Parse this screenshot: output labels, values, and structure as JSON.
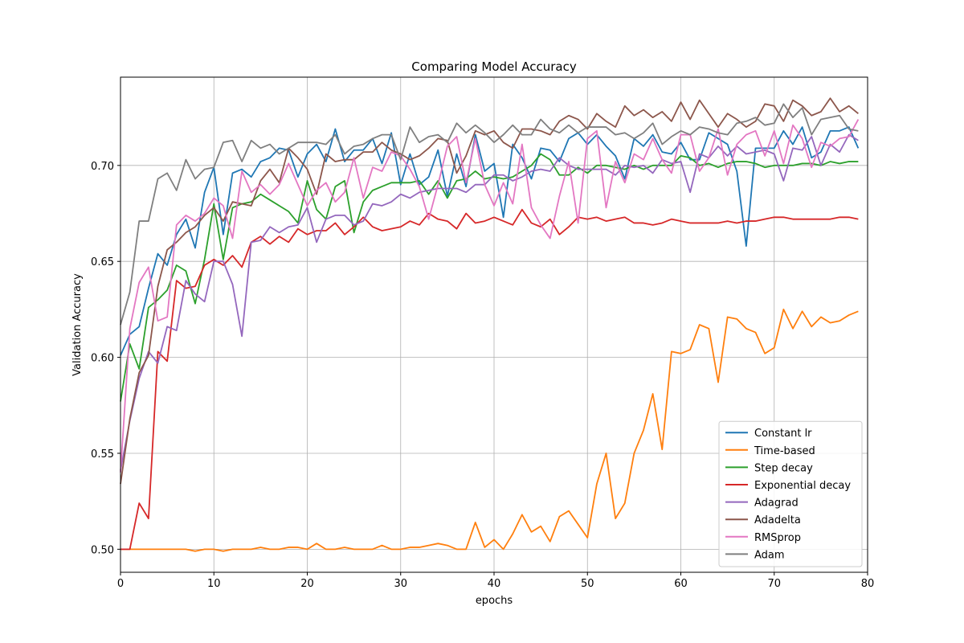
{
  "chart_data": {
    "type": "line",
    "title": "Comparing Model Accuracy",
    "xlabel": "epochs",
    "ylabel": "Validation Accuracy",
    "xlim": [
      0,
      80
    ],
    "ylim": [
      0.488,
      0.746
    ],
    "xticks": [
      0,
      10,
      20,
      30,
      40,
      50,
      60,
      70,
      80
    ],
    "yticks": [
      0.5,
      0.55,
      0.6,
      0.65,
      0.7
    ],
    "ytick_labels": [
      "0.50",
      "0.55",
      "0.60",
      "0.65",
      "0.70"
    ],
    "grid": true,
    "legend_position": "lower-right",
    "x": [
      0,
      1,
      2,
      3,
      4,
      5,
      6,
      7,
      8,
      9,
      10,
      11,
      12,
      13,
      14,
      15,
      16,
      17,
      18,
      19,
      20,
      21,
      22,
      23,
      24,
      25,
      26,
      27,
      28,
      29,
      30,
      31,
      32,
      33,
      34,
      35,
      36,
      37,
      38,
      39,
      40,
      41,
      42,
      43,
      44,
      45,
      46,
      47,
      48,
      49,
      50,
      51,
      52,
      53,
      54,
      55,
      56,
      57,
      58,
      59,
      60,
      61,
      62,
      63,
      64,
      65,
      66,
      67,
      68,
      69,
      70,
      71,
      72,
      73,
      74,
      75,
      76,
      77,
      78,
      79
    ],
    "series": [
      {
        "name": "Constant lr",
        "color": "#1f77b4",
        "values": [
          0.601,
          0.612,
          0.616,
          0.636,
          0.654,
          0.648,
          0.664,
          0.672,
          0.657,
          0.686,
          0.699,
          0.664,
          0.696,
          0.698,
          0.694,
          0.702,
          0.704,
          0.709,
          0.708,
          0.694,
          0.706,
          0.711,
          0.702,
          0.719,
          0.702,
          0.708,
          0.708,
          0.714,
          0.701,
          0.717,
          0.69,
          0.706,
          0.69,
          0.694,
          0.708,
          0.684,
          0.706,
          0.689,
          0.716,
          0.697,
          0.701,
          0.673,
          0.711,
          0.704,
          0.693,
          0.709,
          0.708,
          0.702,
          0.714,
          0.717,
          0.711,
          0.716,
          0.71,
          0.705,
          0.693,
          0.714,
          0.71,
          0.716,
          0.707,
          0.706,
          0.712,
          0.703,
          0.703,
          0.717,
          0.714,
          0.711,
          0.697,
          0.658,
          0.709,
          0.709,
          0.709,
          0.718,
          0.711,
          0.72,
          0.704,
          0.707,
          0.718,
          0.718,
          0.72,
          0.709
        ]
      },
      {
        "name": "Time-based",
        "color": "#ff7f0e",
        "values": [
          0.5,
          0.5,
          0.5,
          0.5,
          0.5,
          0.5,
          0.5,
          0.5,
          0.499,
          0.5,
          0.5,
          0.499,
          0.5,
          0.5,
          0.5,
          0.501,
          0.5,
          0.5,
          0.501,
          0.501,
          0.5,
          0.503,
          0.5,
          0.5,
          0.501,
          0.5,
          0.5,
          0.5,
          0.502,
          0.5,
          0.5,
          0.501,
          0.501,
          0.502,
          0.503,
          0.502,
          0.5,
          0.5,
          0.514,
          0.501,
          0.505,
          0.5,
          0.508,
          0.518,
          0.509,
          0.512,
          0.504,
          0.517,
          0.52,
          0.513,
          0.506,
          0.534,
          0.55,
          0.516,
          0.524,
          0.55,
          0.562,
          0.581,
          0.552,
          0.603,
          0.602,
          0.604,
          0.617,
          0.615,
          0.587,
          0.621,
          0.62,
          0.615,
          0.613,
          0.602,
          0.605,
          0.625,
          0.615,
          0.624,
          0.616,
          0.621,
          0.618,
          0.619,
          0.622,
          0.624
        ]
      },
      {
        "name": "Step decay",
        "color": "#2ca02c",
        "values": [
          0.577,
          0.607,
          0.594,
          0.626,
          0.63,
          0.635,
          0.648,
          0.645,
          0.628,
          0.651,
          0.68,
          0.651,
          0.678,
          0.68,
          0.681,
          0.685,
          0.682,
          0.679,
          0.676,
          0.67,
          0.692,
          0.677,
          0.672,
          0.689,
          0.692,
          0.665,
          0.681,
          0.687,
          0.689,
          0.691,
          0.691,
          0.691,
          0.692,
          0.685,
          0.692,
          0.683,
          0.692,
          0.693,
          0.697,
          0.693,
          0.694,
          0.693,
          0.694,
          0.697,
          0.7,
          0.706,
          0.703,
          0.695,
          0.695,
          0.699,
          0.696,
          0.7,
          0.7,
          0.699,
          0.698,
          0.7,
          0.698,
          0.7,
          0.7,
          0.7,
          0.705,
          0.704,
          0.7,
          0.701,
          0.699,
          0.701,
          0.702,
          0.702,
          0.701,
          0.699,
          0.7,
          0.7,
          0.7,
          0.701,
          0.701,
          0.7,
          0.702,
          0.701,
          0.702,
          0.702
        ]
      },
      {
        "name": "Exponential decay",
        "color": "#d62728",
        "values": [
          0.5,
          0.5,
          0.524,
          0.516,
          0.603,
          0.598,
          0.64,
          0.636,
          0.637,
          0.648,
          0.651,
          0.648,
          0.653,
          0.647,
          0.66,
          0.663,
          0.659,
          0.663,
          0.66,
          0.667,
          0.664,
          0.666,
          0.666,
          0.67,
          0.664,
          0.668,
          0.673,
          0.668,
          0.666,
          0.667,
          0.668,
          0.671,
          0.669,
          0.675,
          0.672,
          0.671,
          0.667,
          0.675,
          0.67,
          0.671,
          0.673,
          0.671,
          0.669,
          0.677,
          0.67,
          0.668,
          0.672,
          0.664,
          0.668,
          0.673,
          0.672,
          0.673,
          0.671,
          0.672,
          0.673,
          0.67,
          0.67,
          0.669,
          0.67,
          0.672,
          0.671,
          0.67,
          0.67,
          0.67,
          0.67,
          0.671,
          0.67,
          0.671,
          0.671,
          0.672,
          0.673,
          0.673,
          0.672,
          0.672,
          0.672,
          0.672,
          0.672,
          0.673,
          0.673,
          0.672
        ]
      },
      {
        "name": "Adagrad",
        "color": "#9467bd",
        "values": [
          0.541,
          0.567,
          0.589,
          0.603,
          0.597,
          0.616,
          0.614,
          0.64,
          0.633,
          0.629,
          0.65,
          0.65,
          0.638,
          0.611,
          0.66,
          0.661,
          0.668,
          0.665,
          0.668,
          0.669,
          0.678,
          0.66,
          0.672,
          0.674,
          0.674,
          0.669,
          0.671,
          0.68,
          0.679,
          0.681,
          0.685,
          0.683,
          0.686,
          0.687,
          0.688,
          0.688,
          0.688,
          0.686,
          0.69,
          0.69,
          0.695,
          0.695,
          0.692,
          0.694,
          0.697,
          0.698,
          0.697,
          0.704,
          0.7,
          0.698,
          0.698,
          0.698,
          0.698,
          0.695,
          0.7,
          0.699,
          0.7,
          0.696,
          0.703,
          0.701,
          0.702,
          0.686,
          0.706,
          0.704,
          0.71,
          0.705,
          0.71,
          0.706,
          0.707,
          0.708,
          0.706,
          0.692,
          0.709,
          0.708,
          0.715,
          0.7,
          0.711,
          0.707,
          0.716,
          0.713
        ]
      },
      {
        "name": "Adadelta",
        "color": "#8c564b",
        "values": [
          0.534,
          0.568,
          0.592,
          0.601,
          0.637,
          0.656,
          0.66,
          0.665,
          0.668,
          0.674,
          0.678,
          0.671,
          0.681,
          0.68,
          0.679,
          0.692,
          0.698,
          0.691,
          0.709,
          0.704,
          0.698,
          0.685,
          0.706,
          0.702,
          0.703,
          0.703,
          0.707,
          0.707,
          0.712,
          0.708,
          0.706,
          0.703,
          0.705,
          0.709,
          0.714,
          0.713,
          0.696,
          0.705,
          0.718,
          0.716,
          0.718,
          0.712,
          0.709,
          0.719,
          0.719,
          0.718,
          0.716,
          0.723,
          0.726,
          0.724,
          0.719,
          0.727,
          0.723,
          0.72,
          0.731,
          0.726,
          0.729,
          0.725,
          0.728,
          0.723,
          0.733,
          0.724,
          0.734,
          0.727,
          0.72,
          0.727,
          0.724,
          0.72,
          0.723,
          0.732,
          0.731,
          0.723,
          0.734,
          0.731,
          0.726,
          0.728,
          0.735,
          0.728,
          0.731,
          0.727
        ]
      },
      {
        "name": "RMSprop",
        "color": "#e377c2",
        "values": [
          0.54,
          0.615,
          0.639,
          0.647,
          0.619,
          0.621,
          0.669,
          0.674,
          0.671,
          0.675,
          0.683,
          0.679,
          0.662,
          0.697,
          0.686,
          0.69,
          0.685,
          0.69,
          0.701,
          0.69,
          0.679,
          0.687,
          0.691,
          0.681,
          0.686,
          0.704,
          0.683,
          0.699,
          0.697,
          0.707,
          0.705,
          0.698,
          0.689,
          0.672,
          0.69,
          0.71,
          0.715,
          0.691,
          0.714,
          0.69,
          0.679,
          0.691,
          0.68,
          0.711,
          0.678,
          0.669,
          0.662,
          0.684,
          0.702,
          0.67,
          0.714,
          0.718,
          0.678,
          0.702,
          0.691,
          0.706,
          0.703,
          0.714,
          0.703,
          0.696,
          0.716,
          0.716,
          0.697,
          0.704,
          0.719,
          0.695,
          0.711,
          0.716,
          0.718,
          0.705,
          0.718,
          0.701,
          0.721,
          0.714,
          0.699,
          0.712,
          0.71,
          0.714,
          0.715,
          0.724
        ]
      },
      {
        "name": "Adam",
        "color": "#7f7f7f",
        "values": [
          0.617,
          0.634,
          0.671,
          0.671,
          0.693,
          0.696,
          0.687,
          0.703,
          0.693,
          0.698,
          0.699,
          0.712,
          0.713,
          0.702,
          0.713,
          0.709,
          0.711,
          0.706,
          0.709,
          0.712,
          0.712,
          0.712,
          0.711,
          0.716,
          0.706,
          0.71,
          0.711,
          0.714,
          0.716,
          0.716,
          0.703,
          0.72,
          0.712,
          0.715,
          0.716,
          0.712,
          0.722,
          0.717,
          0.721,
          0.717,
          0.712,
          0.716,
          0.721,
          0.716,
          0.716,
          0.724,
          0.719,
          0.717,
          0.721,
          0.717,
          0.72,
          0.72,
          0.72,
          0.716,
          0.717,
          0.714,
          0.717,
          0.722,
          0.711,
          0.715,
          0.718,
          0.716,
          0.72,
          0.719,
          0.717,
          0.716,
          0.722,
          0.723,
          0.725,
          0.721,
          0.722,
          0.732,
          0.725,
          0.73,
          0.716,
          0.724,
          0.725,
          0.726,
          0.719,
          0.718
        ]
      }
    ]
  }
}
